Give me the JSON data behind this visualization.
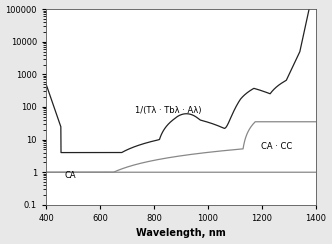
{
  "xlabel": "Wavelength, nm",
  "xlim": [
    400,
    1400
  ],
  "ylim_log": [
    0.1,
    100000
  ],
  "yticks": [
    0.1,
    1,
    10,
    100,
    1000,
    10000,
    100000
  ],
  "xticks": [
    400,
    600,
    800,
    1000,
    1200,
    1400
  ],
  "curve1_label": "1/(Tλ · Tbλ · Aλ)",
  "curve2_label": "CA · CC",
  "curve3_label": "CA",
  "curve1_color": "#222222",
  "curve2_color": "#888888",
  "curve3_color": "#888888",
  "fig_facecolor": "#e8e8e8",
  "ax_facecolor": "#ffffff",
  "ann1_x": 730,
  "ann1_y": 55,
  "ann2_x": 1195,
  "ann2_y": 4.5,
  "ann3_x": 470,
  "ann3_y": 0.58,
  "xlabel_fontsize": 7,
  "tick_fontsize": 6,
  "ann_fontsize": 6
}
